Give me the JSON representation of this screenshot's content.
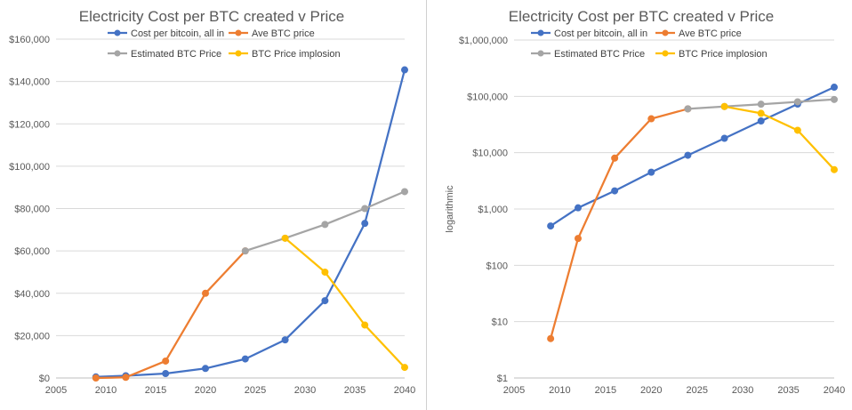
{
  "chart_data": [
    {
      "type": "line",
      "title": "Electricity Cost per BTC created v Price",
      "xlabel": "",
      "ylabel": "",
      "xlim": [
        2005,
        2040
      ],
      "ylim": [
        0,
        160000
      ],
      "y_scale": "linear",
      "x_ticks": [
        "2005",
        "2010",
        "2015",
        "2020",
        "2025",
        "2030",
        "2035",
        "2040"
      ],
      "y_ticks": [
        "$0",
        "$20,000",
        "$40,000",
        "$60,000",
        "$80,000",
        "$100,000",
        "$120,000",
        "$140,000",
        "$160,000"
      ],
      "grid": "horizontal",
      "legend_placement": "top",
      "series": [
        {
          "name": "Cost per bitcoin, all in",
          "color": "#4472C4",
          "x": [
            2009,
            2012,
            2016,
            2020,
            2024,
            2028,
            2032,
            2036,
            2040
          ],
          "y": [
            500,
            1050,
            2100,
            4500,
            9000,
            18000,
            36500,
            73000,
            145500
          ]
        },
        {
          "name": "Ave BTC price",
          "color": "#ED7D31",
          "x": [
            2009,
            2012,
            2016,
            2020,
            2024
          ],
          "y": [
            5,
            300,
            8000,
            40000,
            60000
          ]
        },
        {
          "name": "Estimated BTC Price",
          "color": "#A5A5A5",
          "x": [
            2024,
            2028,
            2032,
            2036,
            2040
          ],
          "y": [
            60000,
            66000,
            72500,
            80000,
            88000
          ]
        },
        {
          "name": "BTC Price implosion",
          "color": "#FFC000",
          "x": [
            2028,
            2032,
            2036,
            2040
          ],
          "y": [
            66000,
            50000,
            25000,
            5000
          ]
        }
      ]
    },
    {
      "type": "line",
      "title": "Electricity Cost per BTC created v Price",
      "xlabel": "",
      "ylabel": "logarithmic",
      "xlim": [
        2005,
        2040
      ],
      "ylim": [
        1,
        1000000
      ],
      "y_scale": "log",
      "x_ticks": [
        "2005",
        "2010",
        "2015",
        "2020",
        "2025",
        "2030",
        "2035",
        "2040"
      ],
      "y_ticks": [
        "$1",
        "$10",
        "$100",
        "$1,000",
        "$10,000",
        "$100,000",
        "$1,000,000"
      ],
      "grid": "horizontal",
      "legend_placement": "top",
      "series": [
        {
          "name": "Cost per bitcoin, all in",
          "color": "#4472C4",
          "x": [
            2009,
            2012,
            2016,
            2020,
            2024,
            2028,
            2032,
            2036,
            2040
          ],
          "y": [
            500,
            1050,
            2100,
            4500,
            9000,
            18000,
            36500,
            73000,
            145500
          ]
        },
        {
          "name": "Ave BTC price",
          "color": "#ED7D31",
          "x": [
            2009,
            2012,
            2016,
            2020,
            2024
          ],
          "y": [
            5,
            300,
            8000,
            40000,
            60000
          ]
        },
        {
          "name": "Estimated BTC Price",
          "color": "#A5A5A5",
          "x": [
            2024,
            2028,
            2032,
            2036,
            2040
          ],
          "y": [
            60000,
            66000,
            72500,
            80000,
            88000
          ]
        },
        {
          "name": "BTC Price implosion",
          "color": "#FFC000",
          "x": [
            2028,
            2032,
            2036,
            2040
          ],
          "y": [
            66000,
            50000,
            25000,
            5000
          ]
        }
      ]
    }
  ]
}
